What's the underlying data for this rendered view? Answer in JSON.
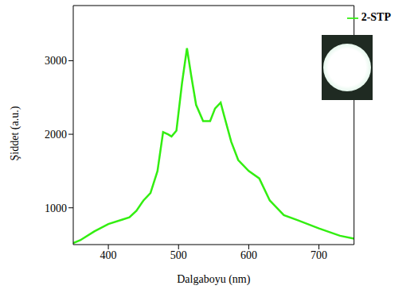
{
  "chart_data": {
    "type": "line",
    "x_label": "Dalgaboyu (nm)",
    "y_label": "Şiddet (a.u.)",
    "x": [
      350,
      360,
      380,
      400,
      420,
      430,
      440,
      450,
      460,
      470,
      478,
      485,
      490,
      497,
      505,
      512,
      518,
      525,
      535,
      545,
      552,
      560,
      565,
      575,
      585,
      600,
      615,
      630,
      650,
      670,
      700,
      730,
      750
    ],
    "series": [
      {
        "name": "2-STP",
        "color": "#33ee11",
        "values": [
          520,
          560,
          680,
          780,
          840,
          870,
          960,
          1100,
          1200,
          1500,
          2030,
          2000,
          1970,
          2050,
          2700,
          3170,
          2800,
          2400,
          2180,
          2180,
          2350,
          2430,
          2250,
          1900,
          1650,
          1500,
          1400,
          1100,
          900,
          830,
          720,
          620,
          580
        ]
      }
    ],
    "xlim": [
      350,
      750
    ],
    "ylim": [
      500,
      3750
    ],
    "xticks": [
      400,
      500,
      600,
      700
    ],
    "yticks": [
      1000,
      2000,
      3000
    ],
    "grid": false,
    "legend": "top-right"
  }
}
